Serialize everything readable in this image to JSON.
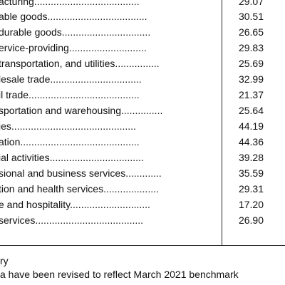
{
  "table": {
    "rows": [
      {
        "label": "acturing......................................",
        "value": "29.07"
      },
      {
        "label": "able goods....................................",
        "value": "30.51"
      },
      {
        "label": "durable goods................................",
        "value": "26.65"
      },
      {
        "label": "ervice-providing............................",
        "value": "29.83"
      },
      {
        "label": " transportation, and utilities................",
        "value": "25.69"
      },
      {
        "label": "lesale trade.................................",
        "value": "32.99"
      },
      {
        "label": "il trade........................................",
        "value": "21.37"
      },
      {
        "label": "sportation and warehousing...............",
        "value": "25.64"
      },
      {
        "label": "ies.............................................",
        "value": "44.19"
      },
      {
        "label": "ation...........................................",
        "value": "44.36"
      },
      {
        "label": "ial activities..................................",
        "value": "39.28"
      },
      {
        "label": "sional and business services.............",
        "value": "35.59"
      },
      {
        "label": "tion and health services....................",
        "value": "29.31"
      },
      {
        "label": "e and hospitality.............................",
        "value": "17.20"
      },
      {
        "label": "services.......................................",
        "value": "26.90"
      }
    ]
  },
  "footnotes": {
    "line1": "ry",
    "line2": "a have been revised to reflect March 2021 benchmark"
  }
}
